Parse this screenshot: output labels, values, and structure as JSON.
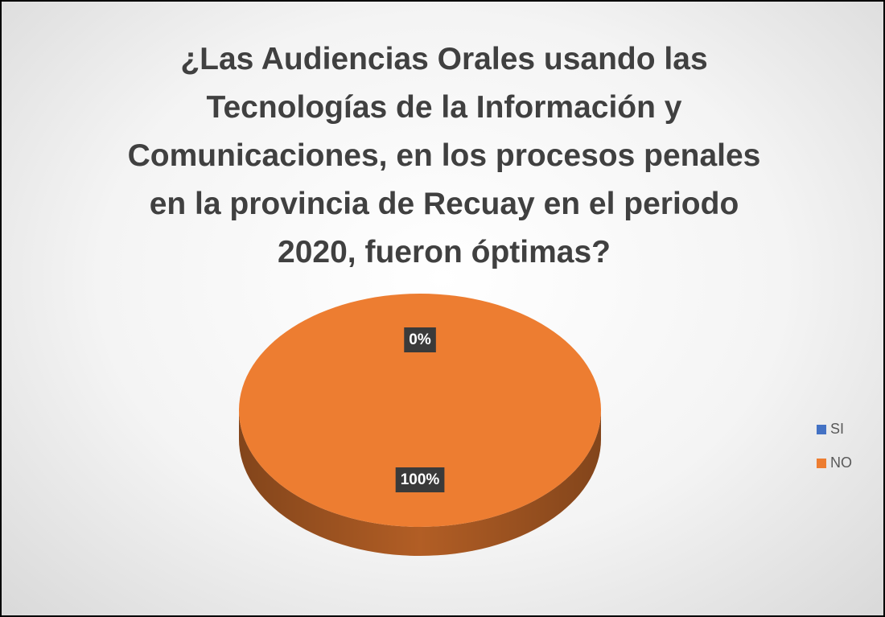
{
  "chart_data": {
    "type": "pie",
    "title": "¿Las Audiencias Orales usando las Tecnologías de la Información y Comunicaciones, en los procesos penales en la provincia de Recuay en el periodo 2020, fueron óptimas?",
    "categories": [
      "SI",
      "NO"
    ],
    "values": [
      0,
      100
    ],
    "value_labels": [
      "0%",
      "100%"
    ],
    "colors": [
      "#4472c4",
      "#ed7d31"
    ],
    "legend": "right"
  }
}
